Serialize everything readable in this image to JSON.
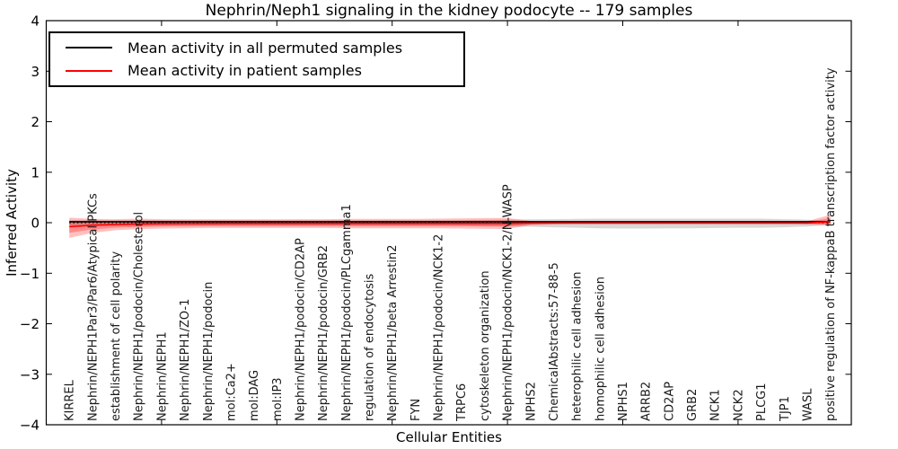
{
  "chart_data": {
    "type": "line",
    "title": "Nephrin/Neph1 signaling in the kidney podocyte -- 179 samples",
    "xlabel": "Cellular Entities",
    "ylabel": "Inferred Activity",
    "ylim": [
      -4,
      4
    ],
    "y_ticks": [
      -4,
      -3,
      -2,
      -1,
      0,
      1,
      2,
      3,
      4
    ],
    "y_tick_labels": [
      "−4",
      "−3",
      "−2",
      "−1",
      "0",
      "1",
      "2",
      "3",
      "4"
    ],
    "x_minor_tick_values": [
      5,
      10,
      15,
      20,
      25,
      30
    ],
    "grid": false,
    "legend_position": "upper left",
    "colors": {
      "permuted_line": "#000000",
      "patient_line": "#ff0000",
      "permuted_band": "#828282",
      "patient_band": "#ff0000",
      "background": "#ffffff"
    },
    "categories": [
      "KIRREL",
      "Nephrin/NEPH1Par3/Par6/Atypical PKCs",
      "establishment of cell polarity",
      "Nephrin/NEPH1/podocin/Cholesterol",
      "Nephrin/NEPH1",
      "Nephrin/NEPH1/ZO-1",
      "Nephrin/NEPH1/podocin",
      "mol:Ca2+",
      "mol:DAG",
      "mol:IP3",
      "Nephrin/NEPH1/podocin/CD2AP",
      "Nephrin/NEPH1/podocin/GRB2",
      "Nephrin/NEPH1/podocin/PLCgamma1",
      "regulation of endocytosis",
      "Nephrin/NEPH1/beta Arrestin2",
      "FYN",
      "Nephrin/NEPH1/podocin/NCK1-2",
      "TRPC6",
      "cytoskeleton organization",
      "Nephrin/NEPH1/podocin/NCK1-2/N-WASP",
      "NPHS2",
      "ChemicalAbstracts:57-88-5",
      "heterophilic cell adhesion",
      "homophilic cell adhesion",
      "NPHS1",
      "ARRB2",
      "CD2AP",
      "GRB2",
      "NCK1",
      "NCK2",
      "PLCG1",
      "TJP1",
      "WASL",
      "positive regulation of NF-kappaB transcription factor activity"
    ],
    "series": [
      {
        "name": "Mean activity in all permuted samples",
        "color": "#000000",
        "style": "solid",
        "width": 1.6,
        "values": [
          0.02,
          0.02,
          0.02,
          0.02,
          0.02,
          0.02,
          0.02,
          0.02,
          0.02,
          0.02,
          0.02,
          0.02,
          0.02,
          0.02,
          0.02,
          0.02,
          0.02,
          0.02,
          0.02,
          0.02,
          0.02,
          0.02,
          0.02,
          0.02,
          0.02,
          0.02,
          0.02,
          0.02,
          0.02,
          0.02,
          0.02,
          0.02,
          0.02,
          0.02
        ]
      },
      {
        "name": "Mean activity in patient samples",
        "color": "#ff0000",
        "style": "solid",
        "width": 1.6,
        "values": [
          -0.08,
          -0.05,
          -0.035,
          -0.025,
          -0.02,
          -0.018,
          -0.016,
          -0.015,
          -0.015,
          -0.015,
          -0.015,
          -0.015,
          -0.015,
          -0.015,
          -0.015,
          -0.015,
          -0.015,
          -0.015,
          -0.015,
          -0.015,
          -0.008,
          -0.005,
          -0.005,
          -0.005,
          -0.005,
          -0.005,
          -0.005,
          -0.005,
          -0.005,
          -0.005,
          -0.005,
          -0.005,
          -0.005,
          0.02
        ]
      },
      {
        "name": "zero reference",
        "color": "#000000",
        "style": "dotted",
        "width": 1.2,
        "values": [
          0,
          0,
          0,
          0,
          0,
          0,
          0,
          0,
          0,
          0,
          0,
          0,
          0,
          0,
          0,
          0,
          0,
          0,
          0,
          0,
          0,
          0,
          0,
          0,
          0,
          0,
          0,
          0,
          0,
          0,
          0,
          0,
          0,
          0
        ]
      }
    ],
    "bands": [
      {
        "name": "permuted samples spread",
        "color": "#828282",
        "alpha": 0.32,
        "upper": [
          0.05,
          0.05,
          0.05,
          0.05,
          0.05,
          0.05,
          0.05,
          0.05,
          0.05,
          0.05,
          0.05,
          0.05,
          0.05,
          0.05,
          0.05,
          0.05,
          0.05,
          0.05,
          0.055,
          0.06,
          0.065,
          0.07,
          0.075,
          0.08,
          0.08,
          0.08,
          0.08,
          0.08,
          0.08,
          0.08,
          0.08,
          0.07,
          0.06,
          0.03
        ],
        "lower": [
          -0.06,
          -0.06,
          -0.06,
          -0.06,
          -0.06,
          -0.06,
          -0.06,
          -0.06,
          -0.06,
          -0.06,
          -0.06,
          -0.06,
          -0.06,
          -0.06,
          -0.06,
          -0.06,
          -0.06,
          -0.06,
          -0.065,
          -0.07,
          -0.08,
          -0.09,
          -0.1,
          -0.11,
          -0.115,
          -0.115,
          -0.11,
          -0.11,
          -0.105,
          -0.1,
          -0.1,
          -0.09,
          -0.075,
          -0.04
        ]
      },
      {
        "name": "patient samples spread outer",
        "color": "#ff0000",
        "alpha": 0.25,
        "upper": [
          0.1,
          0.075,
          0.07,
          0.08,
          0.07,
          0.065,
          0.065,
          0.065,
          0.065,
          0.065,
          0.07,
          0.07,
          0.075,
          0.075,
          0.075,
          0.075,
          0.08,
          0.085,
          0.09,
          0.095,
          0.035,
          0.025,
          0.02,
          0.02,
          0.02,
          0.02,
          0.02,
          0.02,
          0.02,
          0.02,
          0.02,
          0.02,
          0.03,
          0.155
        ],
        "lower": [
          -0.3,
          -0.2,
          -0.15,
          -0.13,
          -0.115,
          -0.11,
          -0.105,
          -0.105,
          -0.105,
          -0.105,
          -0.105,
          -0.105,
          -0.11,
          -0.11,
          -0.11,
          -0.11,
          -0.11,
          -0.115,
          -0.12,
          -0.125,
          -0.05,
          -0.035,
          -0.03,
          -0.03,
          -0.03,
          -0.03,
          -0.03,
          -0.03,
          -0.03,
          -0.03,
          -0.03,
          -0.03,
          -0.035,
          -0.055
        ]
      },
      {
        "name": "patient samples spread inner",
        "color": "#ff0000",
        "alpha": 0.28,
        "upper": [
          0.019,
          0.019,
          0.023,
          0.033,
          0.03,
          0.028,
          0.029,
          0.029,
          0.029,
          0.029,
          0.032,
          0.032,
          0.035,
          0.035,
          0.035,
          0.035,
          0.037,
          0.04,
          0.043,
          0.046,
          0.016,
          0.012,
          0.009,
          0.009,
          0.009,
          0.009,
          0.009,
          0.009,
          0.009,
          0.009,
          0.009,
          0.009,
          0.014,
          0.094
        ],
        "lower": [
          -0.201,
          -0.133,
          -0.098,
          -0.083,
          -0.072,
          -0.069,
          -0.065,
          -0.065,
          -0.065,
          -0.065,
          -0.065,
          -0.065,
          -0.067,
          -0.067,
          -0.067,
          -0.067,
          -0.067,
          -0.07,
          -0.073,
          -0.076,
          -0.031,
          -0.022,
          -0.019,
          -0.019,
          -0.019,
          -0.019,
          -0.019,
          -0.019,
          -0.019,
          -0.019,
          -0.019,
          -0.019,
          -0.022,
          -0.021
        ]
      }
    ]
  },
  "legend": {
    "items": [
      {
        "label": "Mean activity in all permuted samples",
        "color": "#000000"
      },
      {
        "label": "Mean activity in patient samples",
        "color": "#ff0000"
      }
    ]
  }
}
